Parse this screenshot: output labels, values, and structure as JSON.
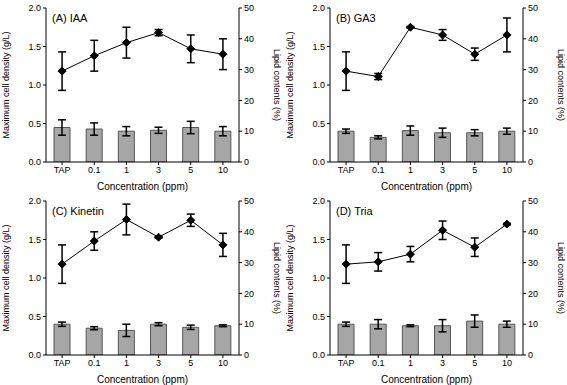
{
  "chart_data": [
    {
      "type": "combo",
      "title": "(A) IAA",
      "x_label": "Concentration (ppm)",
      "y_label": "Maximum cell density (g/L)",
      "y2_label": "Lipid contents (%)",
      "categories": [
        "TAP",
        "0.1",
        "1",
        "3",
        "5",
        "10"
      ],
      "ylim": [
        0,
        2
      ],
      "yticks": [
        {
          "value": 0,
          "label": "0.0"
        },
        0.5,
        {
          "value": 1,
          "label": "1.0"
        },
        1.5,
        {
          "value": 2,
          "label": "2.0"
        }
      ],
      "y2lim": [
        0,
        50
      ],
      "y2ticks": [
        0,
        10,
        20,
        30,
        40,
        50
      ],
      "series": [
        {
          "type": "bar",
          "axis": "y2",
          "color": "#a6a6a6",
          "values": [
            11.2,
            10.7,
            10.0,
            10.3,
            11.2,
            10.0
          ],
          "errors": [
            2.5,
            2.0,
            1.5,
            1.0,
            2.0,
            1.5
          ]
        },
        {
          "type": "line",
          "color": "#000000",
          "marker": "diamond",
          "values": [
            1.18,
            1.38,
            1.55,
            1.68,
            1.47,
            1.4
          ],
          "errors": [
            0.25,
            0.2,
            0.2,
            0.04,
            0.18,
            0.2
          ]
        }
      ]
    },
    {
      "type": "combo",
      "title": "(B) GA3",
      "x_label": "Concentration (ppm)",
      "y_label": "Maximum cell density (g/L)",
      "y2_label": "Lipid contents (%)",
      "categories": [
        "TAP",
        "0.1",
        "1",
        "3",
        "5",
        "10"
      ],
      "ylim": [
        0,
        2
      ],
      "yticks": [
        {
          "value": 0,
          "label": "0.0"
        },
        0.5,
        {
          "value": 1,
          "label": "1.0"
        },
        1.5,
        {
          "value": 2,
          "label": "2.0"
        }
      ],
      "y2lim": [
        0,
        50
      ],
      "y2ticks": [
        0,
        10,
        20,
        30,
        40,
        50
      ],
      "series": [
        {
          "type": "bar",
          "axis": "y2",
          "color": "#a6a6a6",
          "values": [
            10.0,
            8.0,
            10.2,
            9.5,
            9.5,
            10.0
          ],
          "errors": [
            0.7,
            0.5,
            1.5,
            1.5,
            1.0,
            1.0
          ]
        },
        {
          "type": "line",
          "color": "#000000",
          "marker": "diamond",
          "values": [
            1.18,
            1.11,
            1.75,
            1.65,
            1.4,
            1.65
          ],
          "errors": [
            0.25,
            0.04,
            0.01,
            0.07,
            0.08,
            0.22
          ]
        }
      ]
    },
    {
      "type": "combo",
      "title": "(C) Kinetin",
      "x_label": "Concentration (ppm)",
      "y_label": "Maximum cell density (g/L)",
      "y2_label": "Lipid contents (%)",
      "categories": [
        "TAP",
        "0.1",
        "1",
        "3",
        "5",
        "10"
      ],
      "ylim": [
        0,
        2
      ],
      "yticks": [
        {
          "value": 0,
          "label": "0.0"
        },
        0.5,
        {
          "value": 1,
          "label": "1.0"
        },
        1.5,
        {
          "value": 2,
          "label": "2.0"
        }
      ],
      "y2lim": [
        0,
        50
      ],
      "y2ticks": [
        0,
        10,
        20,
        30,
        40,
        50
      ],
      "series": [
        {
          "type": "bar",
          "axis": "y2",
          "color": "#a6a6a6",
          "values": [
            10.0,
            8.7,
            8.0,
            10.0,
            9.0,
            9.5
          ],
          "errors": [
            0.7,
            0.5,
            2.0,
            0.5,
            0.7,
            0.3
          ]
        },
        {
          "type": "line",
          "color": "#000000",
          "marker": "diamond",
          "values": [
            1.18,
            1.48,
            1.76,
            1.53,
            1.75,
            1.43
          ],
          "errors": [
            0.25,
            0.12,
            0.2,
            0.01,
            0.08,
            0.15
          ]
        }
      ]
    },
    {
      "type": "combo",
      "title": "(D) Tria",
      "x_label": "Concentration (ppm)",
      "y_label": "Maximum cell density (g/L)",
      "y2_label": "Lipid contents (%)",
      "categories": [
        "TAP",
        "0.1",
        "1",
        "3",
        "5",
        "10"
      ],
      "ylim": [
        0,
        2
      ],
      "yticks": [
        {
          "value": 0,
          "label": "0.0"
        },
        0.5,
        {
          "value": 1,
          "label": "1.0"
        },
        1.5,
        {
          "value": 2,
          "label": "2.0"
        }
      ],
      "y2lim": [
        0,
        50
      ],
      "y2ticks": [
        0,
        10,
        20,
        30,
        40,
        50
      ],
      "series": [
        {
          "type": "bar",
          "axis": "y2",
          "color": "#a6a6a6",
          "values": [
            10.0,
            10.0,
            9.5,
            9.5,
            11.0,
            10.0
          ],
          "errors": [
            0.7,
            1.5,
            0.3,
            2.0,
            2.0,
            1.0
          ]
        },
        {
          "type": "line",
          "color": "#000000",
          "marker": "diamond",
          "values": [
            1.18,
            1.21,
            1.31,
            1.62,
            1.4,
            1.7
          ],
          "errors": [
            0.25,
            0.12,
            0.1,
            0.12,
            0.12,
            0.01
          ]
        }
      ]
    }
  ]
}
